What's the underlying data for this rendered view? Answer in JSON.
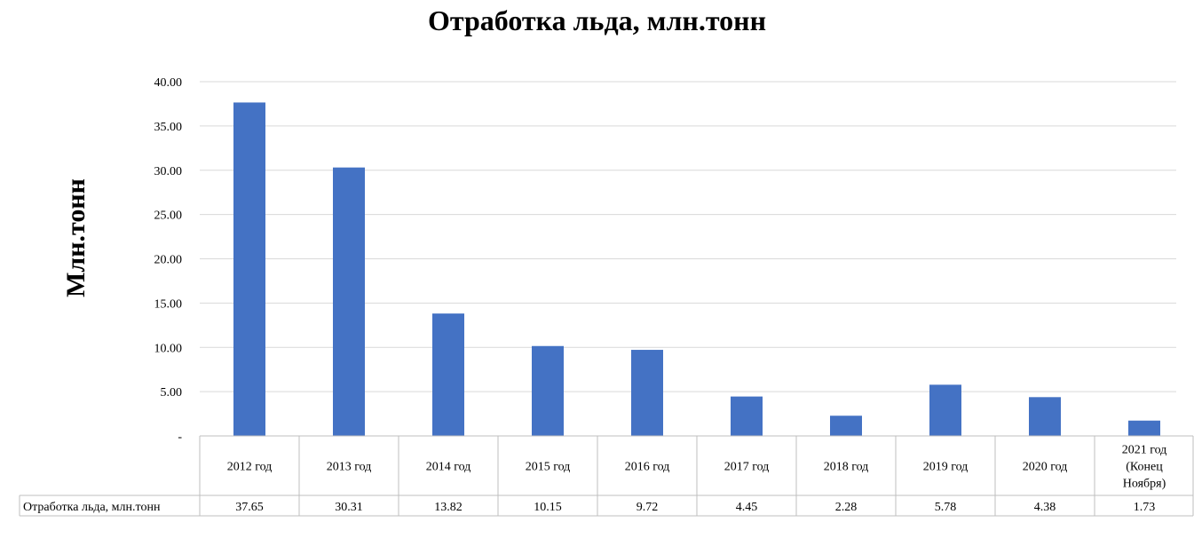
{
  "chart_data": {
    "type": "bar",
    "title": "Отработка льда, млн.тонн",
    "ylabel": "Млн.тонн",
    "xlabel": "",
    "ylim": [
      0,
      40
    ],
    "ytick_labels": [
      "-",
      "5.00",
      "10.00",
      "15.00",
      "20.00",
      "25.00",
      "30.00",
      "35.00",
      "40.00"
    ],
    "grid": true,
    "bar_color": "#4472C4",
    "categories": [
      [
        "2012 год"
      ],
      [
        "2013 год"
      ],
      [
        "2014 год"
      ],
      [
        "2015 год"
      ],
      [
        "2016 год"
      ],
      [
        "2017 год"
      ],
      [
        "2018 год"
      ],
      [
        "2019 год"
      ],
      [
        "2020 год"
      ],
      [
        "2021  год",
        "(Конец",
        "Ноября)"
      ]
    ],
    "series": [
      {
        "name": "Отработка льда, млн.тонн",
        "values": [
          37.65,
          30.31,
          13.82,
          10.15,
          9.72,
          4.45,
          2.28,
          5.78,
          4.38,
          1.73
        ],
        "value_labels": [
          "37.65",
          "30.31",
          "13.82",
          "10.15",
          "9.72",
          "4.45",
          "2.28",
          "5.78",
          "4.38",
          "1.73"
        ]
      }
    ]
  }
}
